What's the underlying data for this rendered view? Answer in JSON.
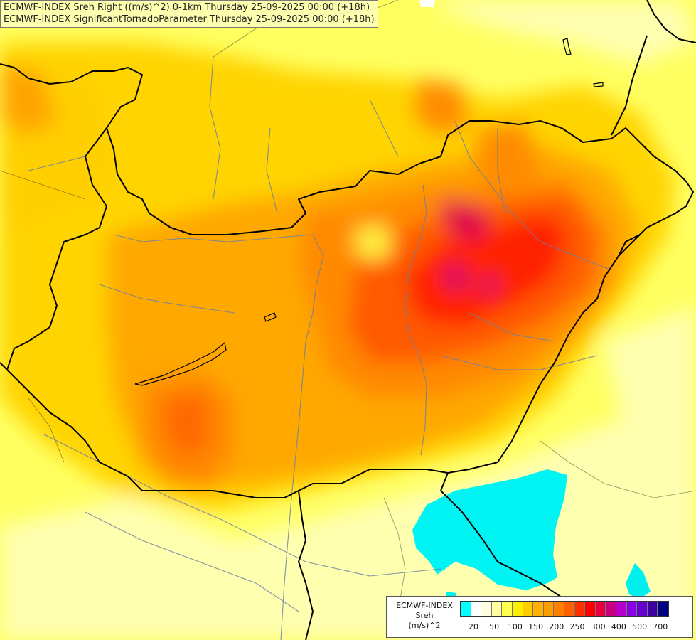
{
  "titles": {
    "line1": "ECMWF-INDEX Sreh Right ((m/s)^2) 0-1km Thursday 25-09-2025 00:00 (+18h)",
    "line2": "ECMWF-INDEX SignificantTornadoParameter Thursday 25-09-2025 00:00 (+18h)"
  },
  "legend": {
    "source": "ECMWF-INDEX",
    "variable": "Sreh",
    "unit": "(m/s)^2",
    "colors": [
      "#00ffff",
      "#ffffff",
      "#ffffe0",
      "#ffffa0",
      "#ffff50",
      "#ffee00",
      "#ffcc00",
      "#ffb000",
      "#ff9c00",
      "#ff8000",
      "#ff6000",
      "#ff3000",
      "#ff0000",
      "#e60040",
      "#c80080",
      "#b400c8",
      "#8a00e6",
      "#6400d0",
      "#3c00a0",
      "#000080"
    ],
    "ticks": [
      "20",
      "50",
      "100",
      "150",
      "200",
      "250",
      "300",
      "400",
      "500",
      "700"
    ]
  },
  "palette": {
    "cyan": "#00ffff",
    "pale_yellow": "#ffffc0",
    "yellow": "#ffff00",
    "gold": "#ffd700",
    "orange": "#ffa500",
    "dark_orange": "#ff7a00",
    "red_orange": "#ff4500",
    "red": "#ff1a00",
    "crimson": "#e6004c",
    "magenta": "#c8008c",
    "border_color": "#000000",
    "river_color": "#6a7fa8"
  }
}
